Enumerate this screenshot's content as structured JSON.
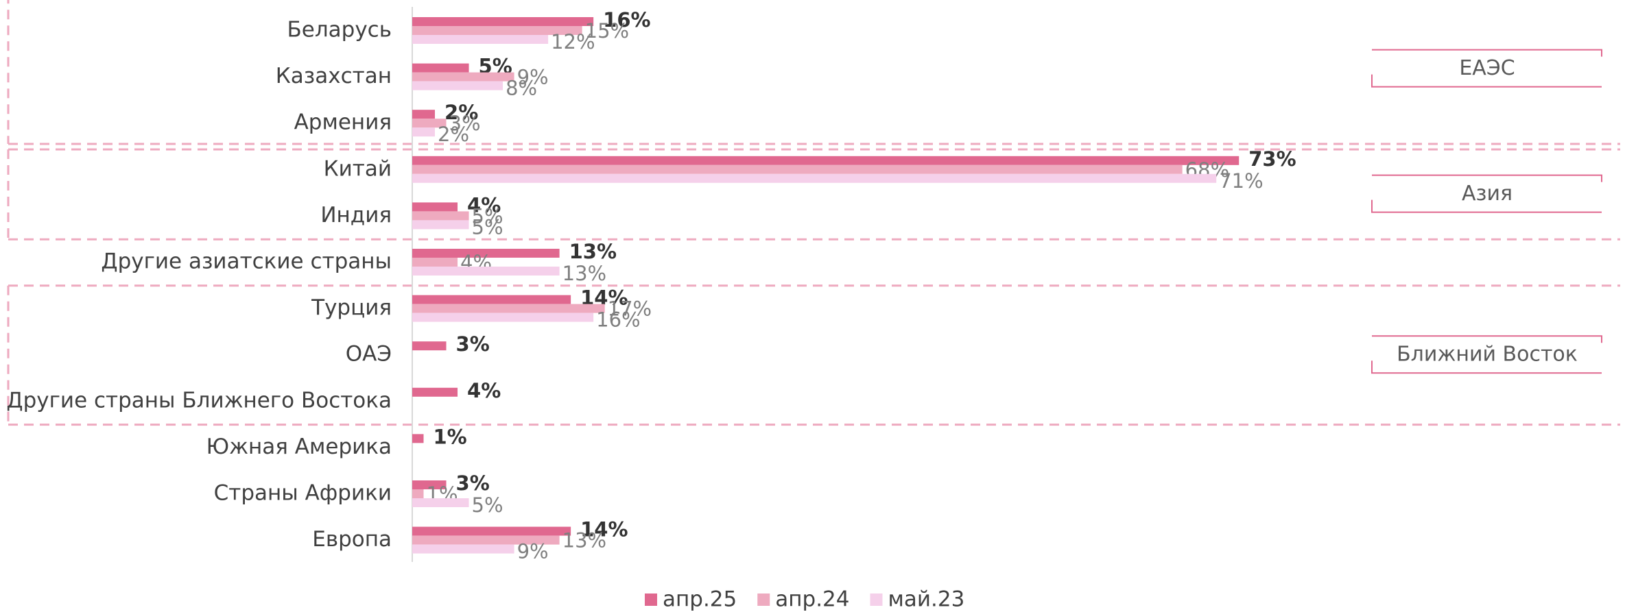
{
  "chart_data": {
    "type": "barh",
    "categories": [
      "Беларусь",
      "Казахстан",
      "Армения",
      "Китай",
      "Индия",
      "Другие азиатские страны",
      "Турция",
      "ОАЭ",
      "Другие страны Ближнего Востока",
      "Южная Америка",
      "Страны Африки",
      "Европа"
    ],
    "series": [
      {
        "name": "апр.25",
        "color": "#e0688f",
        "values": [
          16,
          5,
          2,
          73,
          4,
          13,
          14,
          3,
          4,
          1,
          3,
          14
        ],
        "value_labels": [
          "16%",
          "5%",
          "2%",
          "73%",
          "4%",
          "13%",
          "14%",
          "3%",
          "4%",
          "1%",
          "3%",
          "14%"
        ]
      },
      {
        "name": "апр.24",
        "color": "#eeaabf",
        "values": [
          15,
          9,
          3,
          68,
          5,
          4,
          17,
          null,
          null,
          null,
          1,
          13
        ],
        "value_labels": [
          "15%",
          "9%",
          "3%",
          "68%",
          "5%",
          "4%",
          "17%",
          null,
          null,
          null,
          "1%",
          "13%"
        ]
      },
      {
        "name": "май.23",
        "color": "#f5d0ea",
        "values": [
          12,
          8,
          2,
          71,
          5,
          13,
          16,
          null,
          null,
          null,
          5,
          9
        ],
        "value_labels": [
          "12%",
          "8%",
          "2%",
          "71%",
          "5%",
          "13%",
          "16%",
          null,
          null,
          null,
          "5%",
          "9%"
        ]
      }
    ],
    "xlim": [
      0,
      100
    ],
    "groups": [
      "ЕАЭС",
      "Азия",
      "Ближний Восток"
    ],
    "legend": "bottom"
  }
}
